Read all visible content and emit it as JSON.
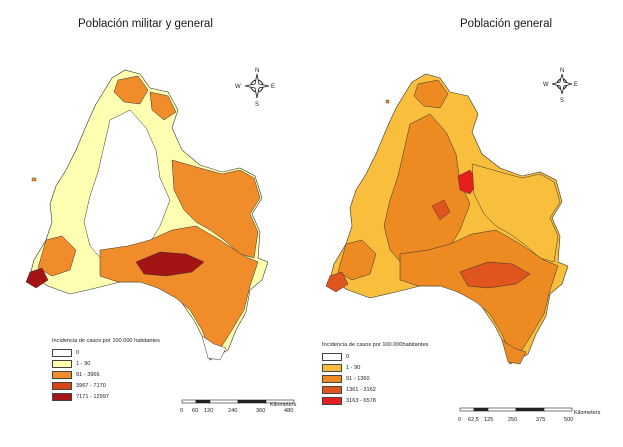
{
  "left_map": {
    "title": "Población militar y general",
    "legend": {
      "heading": "Incidencia de casos por 100.000 habitantes",
      "entries": [
        {
          "label": "0",
          "color": "#ffffff"
        },
        {
          "label": "1 - 90",
          "color": "#ffffb2"
        },
        {
          "label": "91 - 3966",
          "color": "#f08c2a"
        },
        {
          "label": "3967 - 7170",
          "color": "#d8431a"
        },
        {
          "label": "7171 - 12997",
          "color": "#a51414"
        }
      ]
    },
    "scale": {
      "ticks": [
        "0",
        "60",
        "120",
        "240",
        "360",
        "480"
      ],
      "unit": "Kilometers"
    },
    "compass": {
      "n": "N",
      "s": "S",
      "e": "E",
      "w": "W"
    }
  },
  "right_map": {
    "title": "Población  general",
    "legend": {
      "heading": "Incidencia de casos por 100.000habitantes",
      "entries": [
        {
          "label": "0",
          "color": "#ffffff"
        },
        {
          "label": "1 - 90",
          "color": "#f9bf3c"
        },
        {
          "label": "91 - 1360",
          "color": "#ed8a22"
        },
        {
          "label": "1361 - 3162",
          "color": "#e0541d"
        },
        {
          "label": "3163 - 6578",
          "color": "#e61e1e"
        }
      ]
    },
    "scale": {
      "ticks": [
        "0",
        "62,5",
        "125",
        "250",
        "375",
        "500"
      ],
      "unit": "Kilometers"
    },
    "compass": {
      "n": "N",
      "s": "S",
      "e": "E",
      "w": "W"
    }
  }
}
